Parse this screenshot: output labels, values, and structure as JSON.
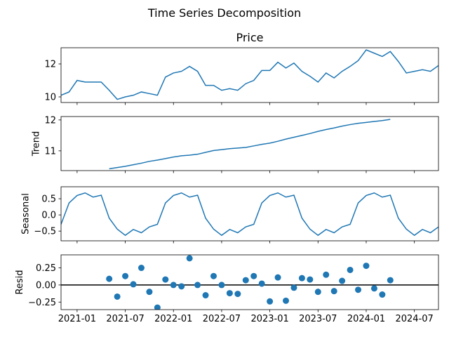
{
  "title": "Time Series Decomposition",
  "x": [
    "2020-11",
    "2020-12",
    "2021-01",
    "2021-02",
    "2021-03",
    "2021-04",
    "2021-05",
    "2021-06",
    "2021-07",
    "2021-08",
    "2021-09",
    "2021-10",
    "2021-11",
    "2021-12",
    "2022-01",
    "2022-02",
    "2022-03",
    "2022-04",
    "2022-05",
    "2022-06",
    "2022-07",
    "2022-08",
    "2022-09",
    "2022-10",
    "2022-11",
    "2022-12",
    "2023-01",
    "2023-02",
    "2023-03",
    "2023-04",
    "2023-05",
    "2023-06",
    "2023-07",
    "2023-08",
    "2023-09",
    "2023-10",
    "2023-11",
    "2023-12",
    "2024-01",
    "2024-02",
    "2024-03",
    "2024-04",
    "2024-05",
    "2024-06",
    "2024-07",
    "2024-08",
    "2024-09",
    "2024-10"
  ],
  "xlim": [
    "2020-11",
    "2024-10"
  ],
  "xticks": [
    "2021-01",
    "2021-07",
    "2022-01",
    "2022-07",
    "2023-01",
    "2023-07",
    "2024-01",
    "2024-07"
  ],
  "chart_data": [
    {
      "type": "line",
      "title": "Price",
      "color": "#1f77b4",
      "values": [
        10.1,
        10.3,
        11.0,
        10.9,
        10.9,
        10.9,
        10.4,
        9.85,
        10.0,
        10.1,
        10.3,
        10.2,
        10.1,
        11.2,
        11.45,
        11.55,
        11.85,
        11.55,
        10.7,
        10.7,
        10.4,
        10.5,
        10.4,
        10.8,
        11.0,
        11.6,
        11.6,
        12.1,
        11.75,
        12.05,
        11.55,
        11.25,
        10.9,
        11.45,
        11.15,
        11.55,
        11.85,
        12.2,
        12.85,
        12.65,
        12.45,
        12.75,
        12.15,
        11.45,
        11.55,
        11.65,
        11.55,
        11.9
      ],
      "ylim": [
        9.66,
        12.98
      ],
      "yticks": [
        10,
        12
      ]
    },
    {
      "type": "line",
      "ylabel": "Trend",
      "color": "#1f77b4",
      "values": [
        null,
        null,
        null,
        null,
        null,
        null,
        10.42,
        10.46,
        10.5,
        10.55,
        10.6,
        10.66,
        10.7,
        10.75,
        10.8,
        10.84,
        10.86,
        10.89,
        10.95,
        11.01,
        11.04,
        11.07,
        11.09,
        11.11,
        11.16,
        11.21,
        11.25,
        11.31,
        11.38,
        11.44,
        11.5,
        11.56,
        11.63,
        11.69,
        11.74,
        11.8,
        11.85,
        11.89,
        11.92,
        11.95,
        11.98,
        12.02,
        null,
        null,
        null,
        null,
        null,
        null
      ],
      "ylim": [
        10.36,
        12.11
      ],
      "yticks": [
        11,
        12
      ]
    },
    {
      "type": "line",
      "ylabel": "Seasonal",
      "color": "#1f77b4",
      "values": [
        -0.29,
        0.37,
        0.6,
        0.68,
        0.55,
        0.61,
        -0.1,
        -0.44,
        -0.63,
        -0.45,
        -0.55,
        -0.37,
        -0.29,
        0.37,
        0.6,
        0.68,
        0.55,
        0.61,
        -0.1,
        -0.44,
        -0.63,
        -0.45,
        -0.55,
        -0.37,
        -0.29,
        0.37,
        0.6,
        0.68,
        0.55,
        0.61,
        -0.1,
        -0.44,
        -0.63,
        -0.45,
        -0.55,
        -0.37,
        -0.29,
        0.37,
        0.6,
        0.68,
        0.55,
        0.61,
        -0.1,
        -0.44,
        -0.63,
        -0.45,
        -0.55,
        -0.37
      ],
      "ylim": [
        -0.8,
        0.87
      ],
      "yticks": [
        {
          "value": -0.5,
          "label": "−0.5"
        },
        {
          "value": 0,
          "label": "0.0"
        },
        0.5
      ]
    },
    {
      "type": "scatter",
      "ylabel": "Resid",
      "color": "#1f77b4",
      "hline": 0,
      "values": [
        null,
        null,
        null,
        null,
        null,
        null,
        0.09,
        -0.17,
        0.13,
        0.01,
        0.25,
        -0.1,
        -0.33,
        0.08,
        0.0,
        -0.02,
        0.39,
        0.0,
        -0.15,
        0.13,
        0.0,
        -0.12,
        -0.13,
        0.07,
        0.13,
        0.02,
        -0.24,
        0.11,
        -0.23,
        -0.04,
        0.1,
        0.08,
        -0.1,
        0.15,
        -0.09,
        0.06,
        0.22,
        -0.07,
        0.28,
        -0.05,
        -0.14,
        0.07,
        null,
        null,
        null,
        null,
        null,
        null
      ],
      "ylim": [
        -0.36,
        0.44
      ],
      "yticks": [
        {
          "value": -0.25,
          "label": "−0.25"
        },
        {
          "value": 0,
          "label": "0.00"
        },
        0.25
      ]
    }
  ]
}
